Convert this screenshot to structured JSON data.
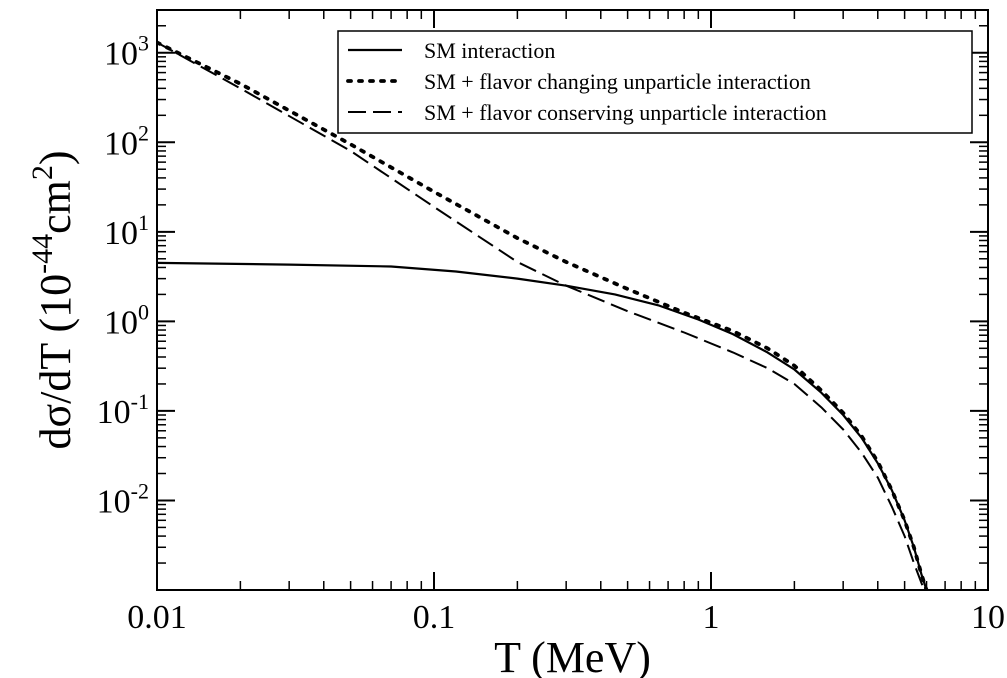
{
  "chart_data": {
    "type": "line",
    "xlabel": "T (MeV)",
    "ylabel": {
      "base": "dσ/dT (10",
      "exp1": "-44",
      "mid": "cm",
      "exp2": "2",
      "end": ")"
    },
    "xscale": "log",
    "yscale": "log",
    "xlim": [
      0.01,
      10
    ],
    "ylim": [
      0.001,
      3000
    ],
    "grid": false,
    "legend_position": "top-right",
    "x_ticks": [
      {
        "value": 0.01,
        "label": "0.01"
      },
      {
        "value": 0.1,
        "label": "0.1"
      },
      {
        "value": 1,
        "label": "1"
      },
      {
        "value": 10,
        "label": "10"
      }
    ],
    "y_ticks": [
      {
        "value": 1000,
        "base": "10",
        "exp": "3"
      },
      {
        "value": 100,
        "base": "10",
        "exp": "2"
      },
      {
        "value": 10,
        "base": "10",
        "exp": "1"
      },
      {
        "value": 1,
        "base": "10",
        "exp": "0"
      },
      {
        "value": 0.1,
        "base": "10",
        "exp": "-1"
      },
      {
        "value": 0.01,
        "base": "10",
        "exp": "-2"
      }
    ],
    "series": [
      {
        "name": "SM interaction",
        "style": "solid",
        "x": [
          0.01,
          0.03,
          0.07,
          0.12,
          0.2,
          0.3,
          0.45,
          0.65,
          0.9,
          1.2,
          1.6,
          2.0,
          2.5,
          3.0,
          3.5,
          4.0,
          4.5,
          5.0,
          5.4,
          5.75,
          6.0
        ],
        "y": [
          4.5,
          4.3,
          4.1,
          3.6,
          3.0,
          2.5,
          2.0,
          1.5,
          1.05,
          0.72,
          0.45,
          0.29,
          0.16,
          0.09,
          0.05,
          0.026,
          0.013,
          0.006,
          0.003,
          0.0015,
          0.001
        ]
      },
      {
        "name": "SM + flavor changing unparticle interaction",
        "style": "dotted",
        "x": [
          0.01,
          0.02,
          0.05,
          0.1,
          0.2,
          0.3,
          0.5,
          0.8,
          1.2,
          1.6,
          2.0,
          2.5,
          3.0,
          3.5,
          4.0,
          4.5,
          5.0,
          5.4,
          5.75,
          6.0
        ],
        "y": [
          1300,
          450,
          95,
          28,
          8.5,
          4.6,
          2.3,
          1.25,
          0.78,
          0.5,
          0.32,
          0.17,
          0.095,
          0.052,
          0.027,
          0.013,
          0.006,
          0.003,
          0.0015,
          0.001
        ]
      },
      {
        "name": "SM + flavor conserving unparticle interaction",
        "style": "dashed",
        "x": [
          0.01,
          0.02,
          0.05,
          0.1,
          0.2,
          0.3,
          0.5,
          0.8,
          1.2,
          1.6,
          2.0,
          2.5,
          3.0,
          3.5,
          4.0,
          4.5,
          5.0,
          5.4,
          5.75,
          5.9
        ],
        "y": [
          1300,
          400,
          80,
          19,
          4.6,
          2.5,
          1.3,
          0.75,
          0.45,
          0.3,
          0.2,
          0.11,
          0.062,
          0.034,
          0.018,
          0.0085,
          0.004,
          0.002,
          0.0012,
          0.001
        ]
      }
    ]
  }
}
